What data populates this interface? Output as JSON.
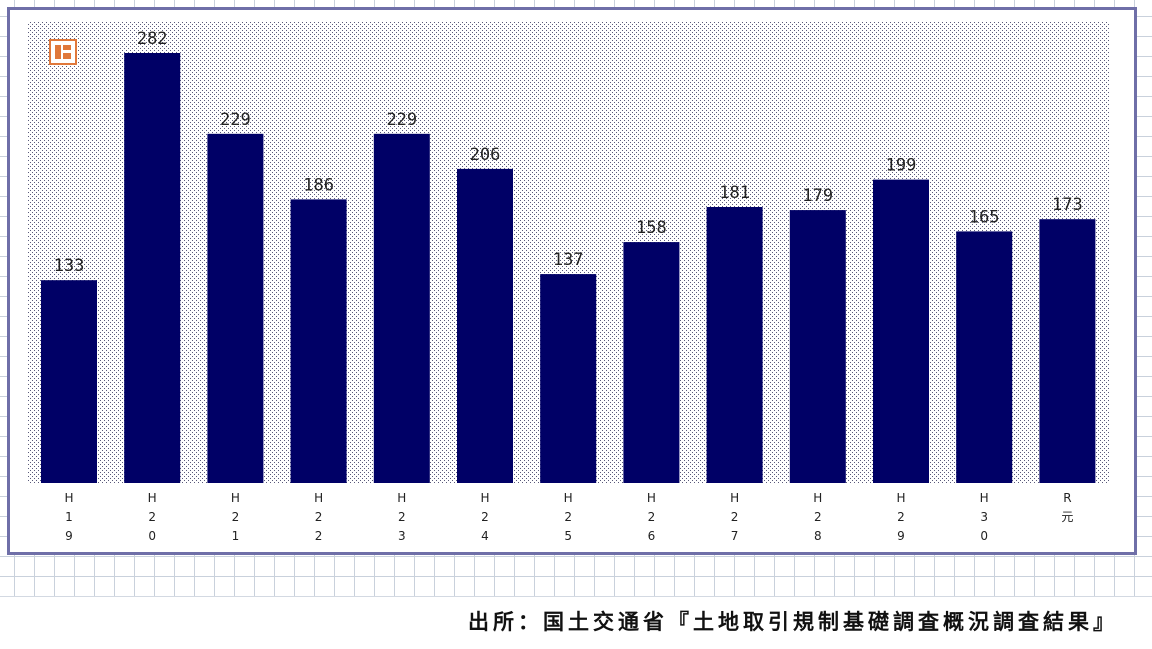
{
  "source_note": "出所：国土交通省『土地取引規制基礎調査概況調査結果』",
  "badge": {
    "glyph_name": "building-icon",
    "color": "#e0783a"
  },
  "colors": {
    "bar": "#000066",
    "frame": "#6f6fa8",
    "plot_dots": "#5a5a7a"
  },
  "chart_data": {
    "type": "bar",
    "title": "",
    "xlabel": "",
    "ylabel": "",
    "categories": [
      "H\n1\n9",
      "H\n2\n0",
      "H\n2\n1",
      "H\n2\n2",
      "H\n2\n3",
      "H\n2\n4",
      "H\n2\n5",
      "H\n2\n6",
      "H\n2\n7",
      "H\n2\n8",
      "H\n2\n9",
      "H\n3\n0",
      "R\n元"
    ],
    "values": [
      133,
      282,
      229,
      186,
      229,
      206,
      137,
      158,
      181,
      179,
      199,
      165,
      173
    ],
    "data_labels": [
      "133",
      "282",
      "229",
      "186",
      "229",
      "206",
      "137",
      "158",
      "181",
      "179",
      "199",
      "165",
      "173"
    ],
    "ylim": [
      0,
      300
    ],
    "grid": false,
    "legend": "none"
  }
}
